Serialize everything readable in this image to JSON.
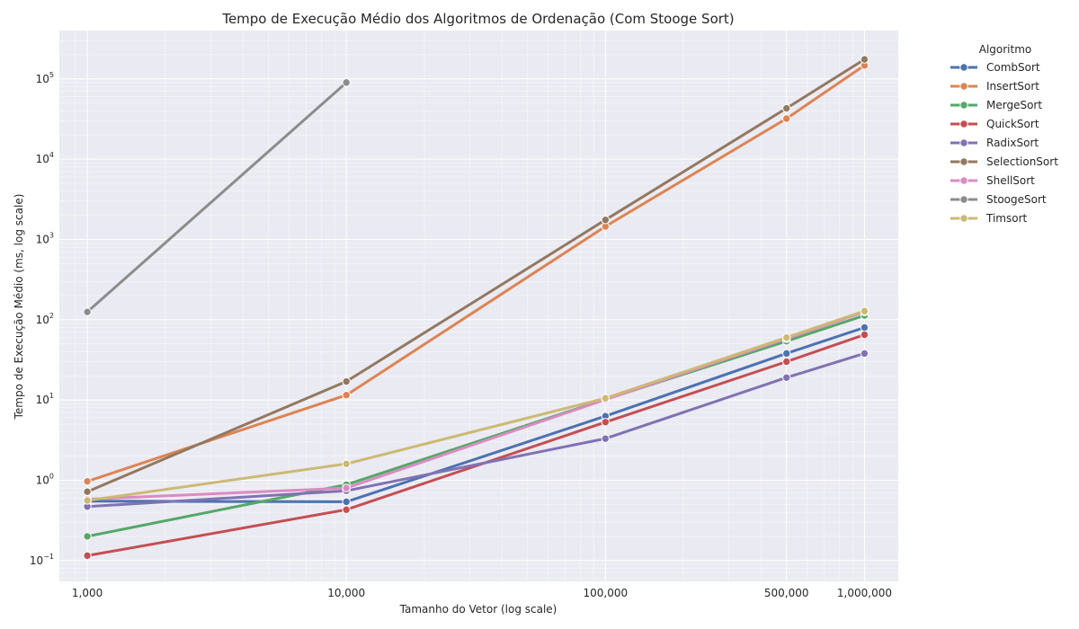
{
  "chart_data": {
    "type": "line",
    "title": "Tempo de Execução Médio dos Algoritmos de Ordenação (Com Stooge Sort)",
    "xlabel": "Tamanho do Vetor (log scale)",
    "ylabel": "Tempo de Execução Médio (ms, log scale)",
    "x_scale": "log",
    "y_scale": "log",
    "xlim": [
      780,
      1350000
    ],
    "ylim": [
      0.055,
      400000
    ],
    "x_ticks": [
      1000,
      10000,
      100000,
      500000,
      1000000
    ],
    "x_tick_labels": [
      "1,000",
      "10,000",
      "100,000",
      "500,000",
      "1,000,000"
    ],
    "y_ticks": [
      0.1,
      1,
      10,
      100,
      1000,
      10000,
      100000
    ],
    "y_tick_labels": [
      {
        "base": "10",
        "exp": "−1"
      },
      {
        "base": "10",
        "exp": "0"
      },
      {
        "base": "10",
        "exp": "1"
      },
      {
        "base": "10",
        "exp": "2"
      },
      {
        "base": "10",
        "exp": "3"
      },
      {
        "base": "10",
        "exp": "4"
      },
      {
        "base": "10",
        "exp": "5"
      }
    ],
    "grid": true,
    "legend": {
      "title": "Algoritmo",
      "placement": "outside-right"
    },
    "series": [
      {
        "name": "CombSort",
        "color": "#4c72b0",
        "x": [
          1000,
          10000,
          100000,
          500000,
          1000000
        ],
        "y": [
          0.55,
          0.54,
          6.3,
          38,
          80
        ]
      },
      {
        "name": "InsertSort",
        "color": "#dd8452",
        "x": [
          1000,
          10000,
          100000,
          500000,
          1000000
        ],
        "y": [
          0.97,
          11.5,
          1450,
          32000,
          147000
        ]
      },
      {
        "name": "MergeSort",
        "color": "#55a868",
        "x": [
          1000,
          10000,
          100000,
          500000,
          1000000
        ],
        "y": [
          0.2,
          0.88,
          10.2,
          54,
          113
        ]
      },
      {
        "name": "QuickSort",
        "color": "#c44e52",
        "x": [
          1000,
          10000,
          100000,
          500000,
          1000000
        ],
        "y": [
          0.115,
          0.43,
          5.3,
          30,
          65
        ]
      },
      {
        "name": "RadixSort",
        "color": "#8172b3",
        "x": [
          1000,
          10000,
          100000,
          500000,
          1000000
        ],
        "y": [
          0.47,
          0.74,
          3.3,
          19,
          38
        ]
      },
      {
        "name": "SelectionSort",
        "color": "#937860",
        "x": [
          1000,
          10000,
          100000,
          500000,
          1000000
        ],
        "y": [
          0.72,
          17,
          1750,
          43000,
          175000
        ]
      },
      {
        "name": "ShellSort",
        "color": "#da8bc3",
        "x": [
          1000,
          10000,
          100000,
          500000,
          1000000
        ],
        "y": [
          0.58,
          0.8,
          10.1,
          58,
          125
        ]
      },
      {
        "name": "StoogeSort",
        "color": "#8c8c8c",
        "x": [
          1000,
          10000
        ],
        "y": [
          125,
          90000
        ]
      },
      {
        "name": "Timsort",
        "color": "#ccb974",
        "x": [
          1000,
          10000,
          100000,
          500000,
          1000000
        ],
        "y": [
          0.56,
          1.6,
          10.5,
          60,
          128
        ]
      }
    ]
  }
}
